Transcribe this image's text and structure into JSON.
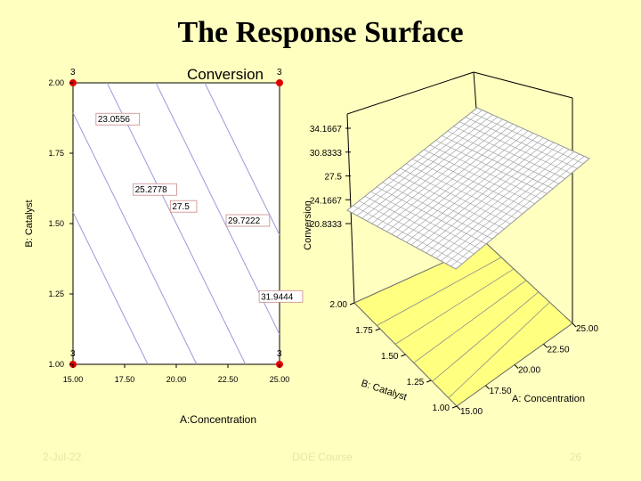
{
  "slide": {
    "title": "The Response Surface",
    "footer_left": "2-Jul-22",
    "footer_center": "DOE Course",
    "footer_right": "26"
  },
  "colors": {
    "background": "#ffffc0",
    "contour_line": "#9a9ad8",
    "design_point": "#e00000",
    "surface_floor": "#ffff80",
    "surface_mesh": "#9a9a9a"
  },
  "chart_data": [
    {
      "type": "contour",
      "title": "Conversion",
      "xlabel": "A:Concentration",
      "ylabel": "B: Catalyst",
      "xlim": [
        15.0,
        25.0
      ],
      "ylim": [
        1.0,
        2.0
      ],
      "x_ticks": [
        "15.00",
        "17.50",
        "20.00",
        "22.50",
        "25.00"
      ],
      "y_ticks": [
        "1.00",
        "1.25",
        "1.50",
        "1.75",
        "2.00"
      ],
      "contour_levels": [
        {
          "label": "23.0556",
          "value": 23.0556,
          "label_at": [
            16.2,
            1.86
          ]
        },
        {
          "label": "25.2778",
          "value": 25.2778,
          "label_at": [
            18.0,
            1.61
          ]
        },
        {
          "label": "27.5",
          "value": 27.5,
          "label_at": [
            19.8,
            1.55
          ]
        },
        {
          "label": "29.7222",
          "value": 29.7222,
          "label_at": [
            22.5,
            1.5
          ]
        },
        {
          "label": "31.9444",
          "value": 31.9444,
          "label_at": [
            24.1,
            1.23
          ]
        }
      ],
      "design_points": [
        {
          "x": 15.0,
          "y": 2.0,
          "label": "3"
        },
        {
          "x": 25.0,
          "y": 2.0,
          "label": "3"
        },
        {
          "x": 15.0,
          "y": 1.0,
          "label": "3"
        },
        {
          "x": 25.0,
          "y": 1.0,
          "label": "3"
        }
      ]
    },
    {
      "type": "surface",
      "zlabel": "Conversion",
      "xlabel": "A: Concentration",
      "ylabel": "B: Catalyst",
      "z_ticks": [
        "20.8333",
        "24.1667",
        "27.5",
        "30.8333",
        "34.1667"
      ],
      "x_ticks": [
        "15.00",
        "17.50",
        "20.00",
        "22.50",
        "25.00"
      ],
      "y_ticks": [
        "1.00",
        "1.25",
        "1.50",
        "1.75",
        "2.00"
      ]
    }
  ]
}
